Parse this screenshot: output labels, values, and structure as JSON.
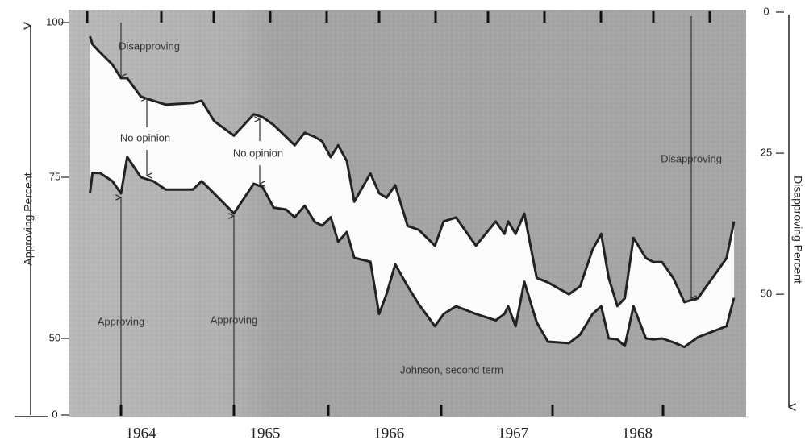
{
  "chart_data": {
    "type": "line",
    "x": [
      1964.09,
      1964.11,
      1964.17,
      1964.27,
      1964.34,
      1964.39,
      1964.5,
      1964.6,
      1964.7,
      1964.92,
      1964.99,
      1965.09,
      1965.25,
      1965.41,
      1965.48,
      1965.57,
      1965.67,
      1965.74,
      1965.82,
      1965.9,
      1965.96,
      1966.03,
      1966.09,
      1966.16,
      1966.22,
      1966.35,
      1966.42,
      1966.48,
      1966.55,
      1966.65,
      1966.74,
      1966.87,
      1966.94,
      1967.04,
      1967.2,
      1967.36,
      1967.43,
      1967.46,
      1967.52,
      1967.59,
      1967.69,
      1967.78,
      1967.95,
      1968.04,
      1968.14,
      1968.21,
      1968.27,
      1968.34,
      1968.4,
      1968.47,
      1968.57,
      1968.63,
      1968.7,
      1968.79,
      1968.88,
      1968.99,
      1969.22,
      1969.28
    ],
    "series": [
      {
        "name": "Approving",
        "color": "#222222",
        "axis": "y",
        "values": [
          72.5,
          75.7,
          75.7,
          74.4,
          72.5,
          78.3,
          75,
          74.4,
          73.1,
          73.1,
          74.4,
          72.5,
          69.4,
          74,
          73.5,
          70.3,
          70,
          68.8,
          70.6,
          68.1,
          67.5,
          68.8,
          65,
          66.5,
          62.5,
          61.9,
          53.8,
          56.9,
          61.5,
          58.1,
          55.3,
          51.9,
          53.8,
          55,
          53.8,
          52.8,
          53.8,
          55,
          51.9,
          58.8,
          52.5,
          47.9,
          46.9,
          50.6,
          53.8,
          55,
          50,
          49.4,
          45,
          55,
          50,
          49.4,
          50,
          47.5,
          44.4,
          50.2,
          51.9,
          56.3
        ]
      },
      {
        "name": "Disapproving",
        "color": "#222222",
        "axis": "y2",
        "values": [
          4.3,
          5.7,
          7.1,
          9.3,
          11.7,
          11.7,
          15,
          15.7,
          16.4,
          16.1,
          15.7,
          19.3,
          21.9,
          18.1,
          18.6,
          20,
          22.1,
          23.6,
          21.4,
          22.1,
          22.9,
          25.7,
          23.6,
          26.4,
          33.6,
          28.6,
          32.1,
          32.9,
          30.7,
          37.9,
          38.6,
          41.4,
          37.1,
          36.4,
          41.4,
          37.1,
          39.3,
          37.1,
          39.3,
          35.7,
          47.1,
          47.9,
          50,
          48.6,
          42.1,
          39.3,
          47.1,
          52.1,
          50.7,
          40,
          43.6,
          44.3,
          44.3,
          47.1,
          51.4,
          50.7,
          43.6,
          37.1
        ]
      }
    ],
    "xlim": [
      1963.95,
      1969.41
    ],
    "xticks": [
      {
        "value": 1964.5,
        "label": "1964"
      },
      {
        "value": 1965.5,
        "label": "1965"
      },
      {
        "value": 1966.5,
        "label": "1966"
      },
      {
        "value": 1967.5,
        "label": "1967"
      },
      {
        "value": 1968.5,
        "label": "1968"
      }
    ],
    "ylim": [
      0,
      100
    ],
    "yticks": [
      0,
      50,
      75,
      100
    ],
    "ylabel": "Approving Percent",
    "y2lim": [
      0,
      71.4
    ],
    "y2ticks": [
      0,
      25,
      50
    ],
    "y2label": "Disapproving Percent",
    "y2_reversed": true,
    "annotations": [
      "Disapproving",
      "No opinion",
      "No opinion",
      "Approving",
      "Johnson, second term"
    ]
  }
}
